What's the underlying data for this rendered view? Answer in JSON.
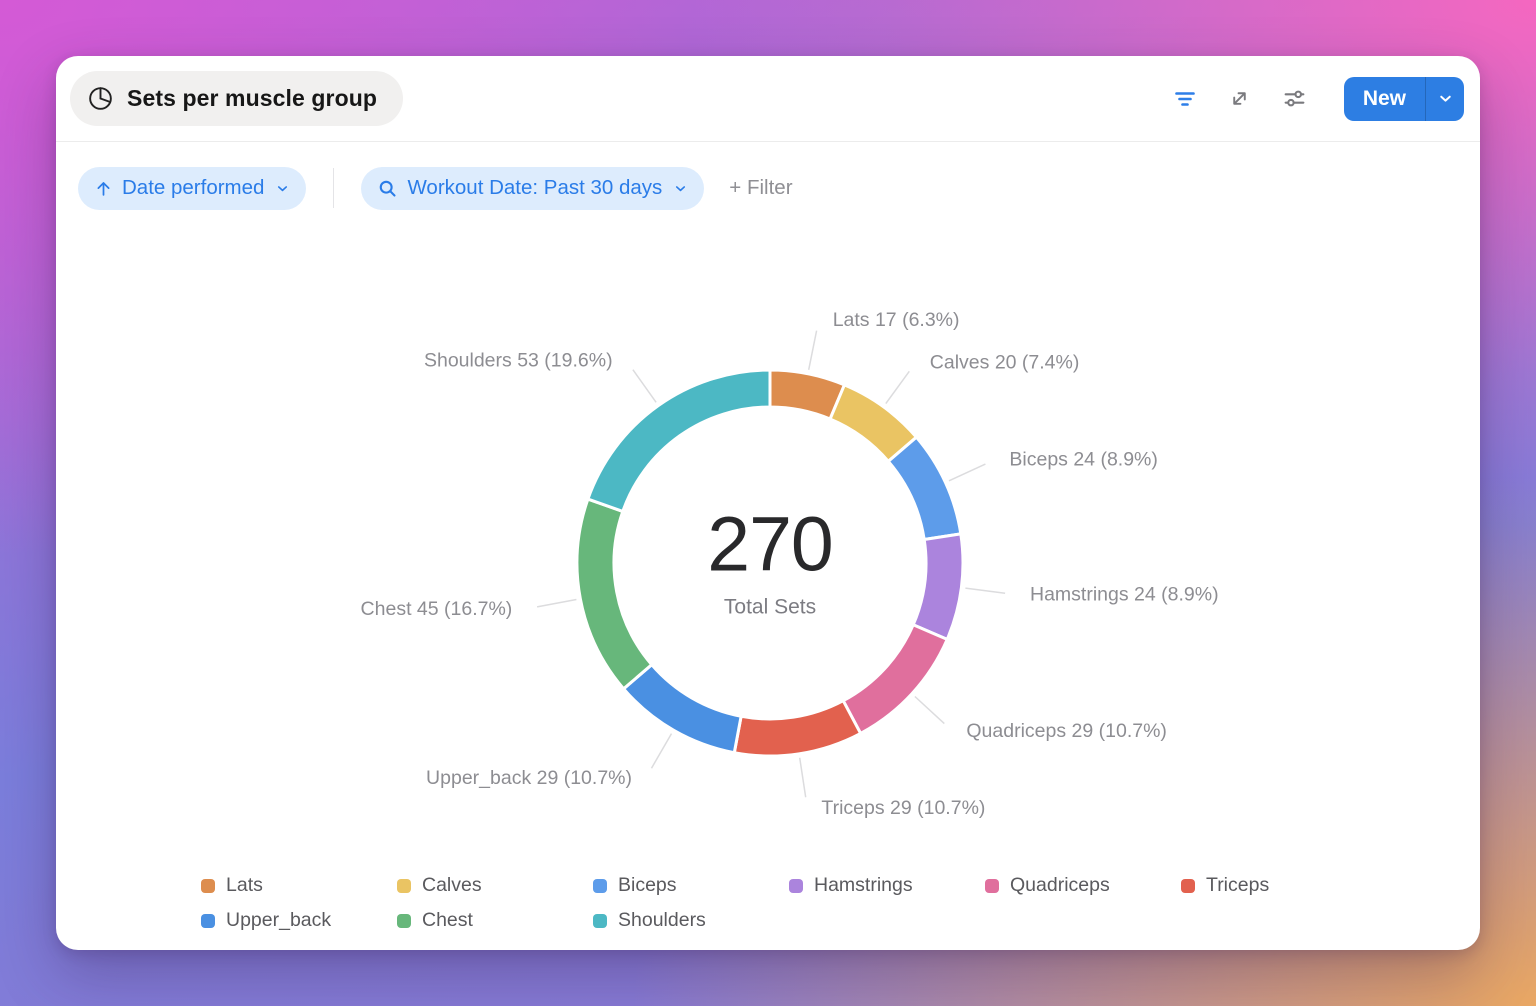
{
  "card": {
    "title": "Sets per muscle group",
    "toolbar": {
      "new_label": "New",
      "icons": [
        "filter-lines-icon",
        "expand-icon",
        "sliders-icon",
        "chevron-down-icon"
      ]
    },
    "filters": {
      "sort_chip": "Date performed",
      "date_chip": "Workout Date: Past 30 days",
      "add_filter": "+ Filter"
    }
  },
  "colors": {
    "accent_blue": "#2d7ee3",
    "chip_bg": "#ddecfd",
    "chip_text": "#2a7ce8",
    "label_gray": "#8d8d92"
  },
  "chart_data": {
    "type": "pie",
    "variant": "donut",
    "title": "Sets per muscle group",
    "center_total": "270",
    "center_label": "Total Sets",
    "total": 270,
    "start_angle": "top",
    "direction": "clockwise",
    "legend_position": "bottom",
    "label_format": "{name} {value} ({pct}%)",
    "series": [
      {
        "name": "Lats",
        "value": 17,
        "pct": "6.3",
        "color": "#dd8d4e"
      },
      {
        "name": "Calves",
        "value": 20,
        "pct": "7.4",
        "color": "#eac463"
      },
      {
        "name": "Biceps",
        "value": 24,
        "pct": "8.9",
        "color": "#5d9cea"
      },
      {
        "name": "Hamstrings",
        "value": 24,
        "pct": "8.9",
        "color": "#ab84dd"
      },
      {
        "name": "Quadriceps",
        "value": 29,
        "pct": "10.7",
        "color": "#e06f9d"
      },
      {
        "name": "Triceps",
        "value": 29,
        "pct": "10.7",
        "color": "#e2614e"
      },
      {
        "name": "Upper_back",
        "value": 29,
        "pct": "10.7",
        "color": "#4a90e2"
      },
      {
        "name": "Chest",
        "value": 45,
        "pct": "16.7",
        "color": "#67b77b"
      },
      {
        "name": "Shoulders",
        "value": 53,
        "pct": "19.6",
        "color": "#4cb8c4"
      }
    ]
  }
}
